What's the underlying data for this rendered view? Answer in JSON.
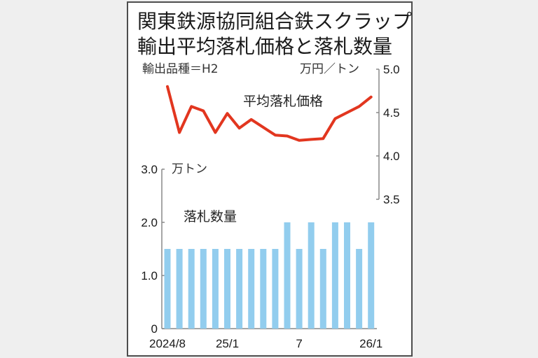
{
  "title_lines": [
    "関東鉄源協同組合鉄スクラップ",
    "輸出平均落札価格と落札数量"
  ],
  "subtitle": "輸出品種＝H2",
  "colors": {
    "line": "#e2361f",
    "bar": "#92cdee",
    "axis": "#888888",
    "frame": "#4d4d4d",
    "background": "#efefef"
  },
  "chart_data": [
    {
      "type": "line",
      "title": "平均落札価格",
      "series_label": "平均落札価格",
      "unit": "万円／トン",
      "axis_position": "right",
      "ylim": [
        3.5,
        5.0
      ],
      "yticks": [
        "5.0",
        "4.5",
        "4.0",
        "3.5"
      ],
      "x": [
        "2024/8",
        "2024/9",
        "2024/10",
        "2024/11",
        "2024/12",
        "2025/1",
        "2025/2",
        "2025/3",
        "2025/4",
        "2025/5",
        "2025/6",
        "2025/7",
        "2025/8",
        "2025/9",
        "2025/10",
        "2025/11",
        "2025/12",
        "2026/1"
      ],
      "values": [
        4.8,
        4.27,
        4.57,
        4.52,
        4.27,
        4.49,
        4.32,
        4.42,
        4.33,
        4.24,
        4.23,
        4.18,
        4.19,
        4.2,
        4.43,
        4.5,
        4.57,
        4.68
      ],
      "grid": false
    },
    {
      "type": "bar",
      "title": "落札数量",
      "series_label": "落札数量",
      "unit": "万トン",
      "axis_position": "left",
      "ylim": [
        0,
        3.0
      ],
      "yticks": [
        "3.0",
        "2.0",
        "1.0",
        "0"
      ],
      "categories": [
        "2024/8",
        "2024/9",
        "2024/10",
        "2024/11",
        "2024/12",
        "2025/1",
        "2025/2",
        "2025/3",
        "2025/4",
        "2025/5",
        "2025/6",
        "2025/7",
        "2025/8",
        "2025/9",
        "2025/10",
        "2025/11",
        "2025/12",
        "2026/1"
      ],
      "values": [
        1.5,
        1.5,
        1.5,
        1.5,
        1.5,
        1.5,
        1.5,
        1.5,
        1.5,
        1.5,
        2.0,
        1.5,
        2.0,
        1.5,
        2.0,
        2.0,
        1.5,
        2.0
      ],
      "xtick_labels": [
        {
          "index": 0,
          "label": "2024/8"
        },
        {
          "index": 5,
          "label": "25/1"
        },
        {
          "index": 11,
          "label": "7"
        },
        {
          "index": 17,
          "label": "26/1"
        }
      ],
      "grid": false
    }
  ]
}
